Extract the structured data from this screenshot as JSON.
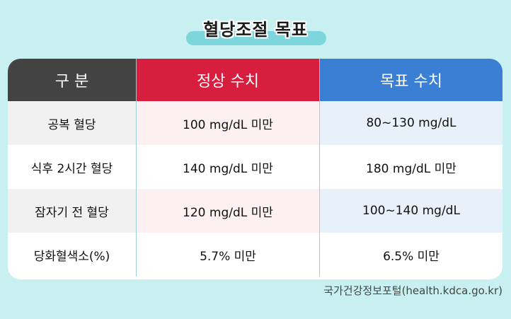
{
  "title": "혈당조절 목표",
  "table": {
    "headers": [
      "구 분",
      "정상 수치",
      "목표 수치"
    ],
    "rows": [
      [
        "공복 혈당",
        "100 mg/dL 미만",
        "80~130 mg/dL"
      ],
      [
        "식후 2시간 혈당",
        "140 mg/dL 미만",
        "180 mg/dL 미만"
      ],
      [
        "잠자기 전 혈당",
        "120 mg/dL 미만",
        "100~140 mg/dL"
      ],
      [
        "당화혈색소(%)",
        "5.7% 미만",
        "6.5% 미만"
      ]
    ]
  },
  "source": "국가건강정보포털(health.kdca.go.kr)",
  "colors": {
    "background": "#c9f0f0",
    "header_category": "#434343",
    "header_normal": "#d81e3f",
    "header_target": "#3a7fd4"
  }
}
